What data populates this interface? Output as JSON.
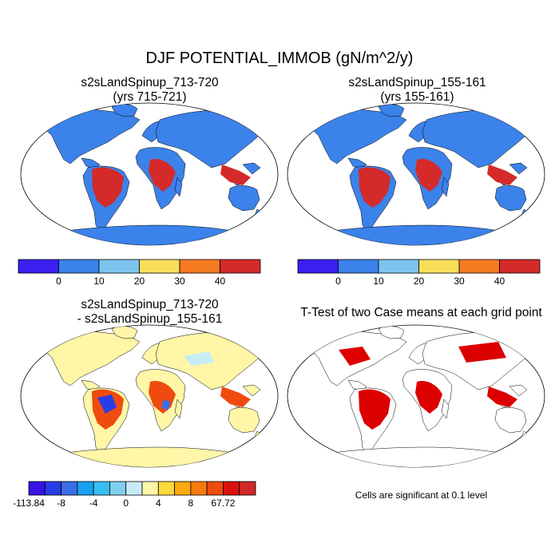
{
  "title": "DJF POTENTIAL_IMMOB (gN/m^2/y)",
  "panels": {
    "top_left": {
      "title_line1": "s2sLandSpinup_713-720",
      "title_line2": "(yrs 715-721)"
    },
    "top_right": {
      "title_line1": "s2sLandSpinup_155-161",
      "title_line2": "(yrs 155-161)"
    },
    "bottom_left": {
      "title_line1": "s2sLandSpinup_713-720",
      "title_line2": "- s2sLandSpinup_155-161"
    },
    "bottom_right": {
      "title_line1": "T-Test of two Case means at each grid point"
    }
  },
  "colorbar_main": {
    "colors": [
      "#3a1ff0",
      "#3b82ea",
      "#7cc4ee",
      "#f7de5a",
      "#f57a22",
      "#d42a2a"
    ],
    "labels": [
      "0",
      "10",
      "20",
      "30",
      "40"
    ]
  },
  "colorbar_diff": {
    "colors": [
      "#3614e6",
      "#2a3ce8",
      "#3a6ee8",
      "#1aa0f0",
      "#38bff0",
      "#7fd0f0",
      "#c8ecf5",
      "#fff6a8",
      "#fdd93c",
      "#fbab10",
      "#f57a0e",
      "#ef4b0e",
      "#dd1010",
      "#d02828"
    ],
    "labels": [
      "-113.84",
      "-8",
      "-4",
      "0",
      "4",
      "8",
      "67.72"
    ]
  },
  "significance_note": "Cells are significant at 0.1 level",
  "colors": {
    "ocean": "#ffffff",
    "land_base": "#3b82ea",
    "diff_base": "#fff6a8",
    "significant": "#dd0000"
  }
}
